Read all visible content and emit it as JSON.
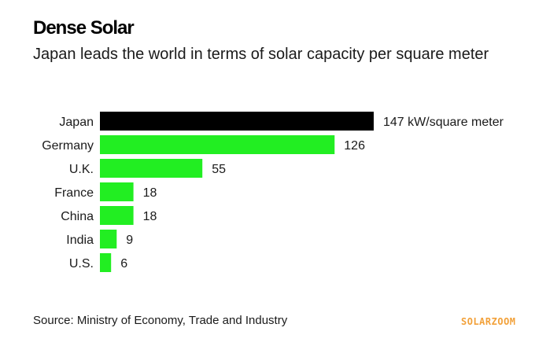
{
  "title": "Dense Solar",
  "subtitle": "Japan leads the world in terms of solar capacity per square meter",
  "source": "Source: Ministry of Economy, Trade and Industry",
  "watermark": "SOLARZOOM",
  "colors": {
    "highlight": "#000000",
    "bar": "#22ee22",
    "watermark": "#f2a13a"
  },
  "chart_data": {
    "type": "bar",
    "orientation": "horizontal",
    "title": "Dense Solar",
    "subtitle": "Japan leads the world in terms of solar capacity per square meter",
    "categories": [
      "Japan",
      "Germany",
      "U.K.",
      "France",
      "China",
      "India",
      "U.S."
    ],
    "values": [
      147,
      126,
      55,
      18,
      18,
      9,
      6
    ],
    "value_labels": [
      "147 kW/square meter",
      "126",
      "55",
      "18",
      "18",
      "9",
      "6"
    ],
    "unit": "kW/square meter",
    "highlight_category": "Japan",
    "xlim": [
      0,
      147
    ],
    "grid": false,
    "legend": "none"
  }
}
